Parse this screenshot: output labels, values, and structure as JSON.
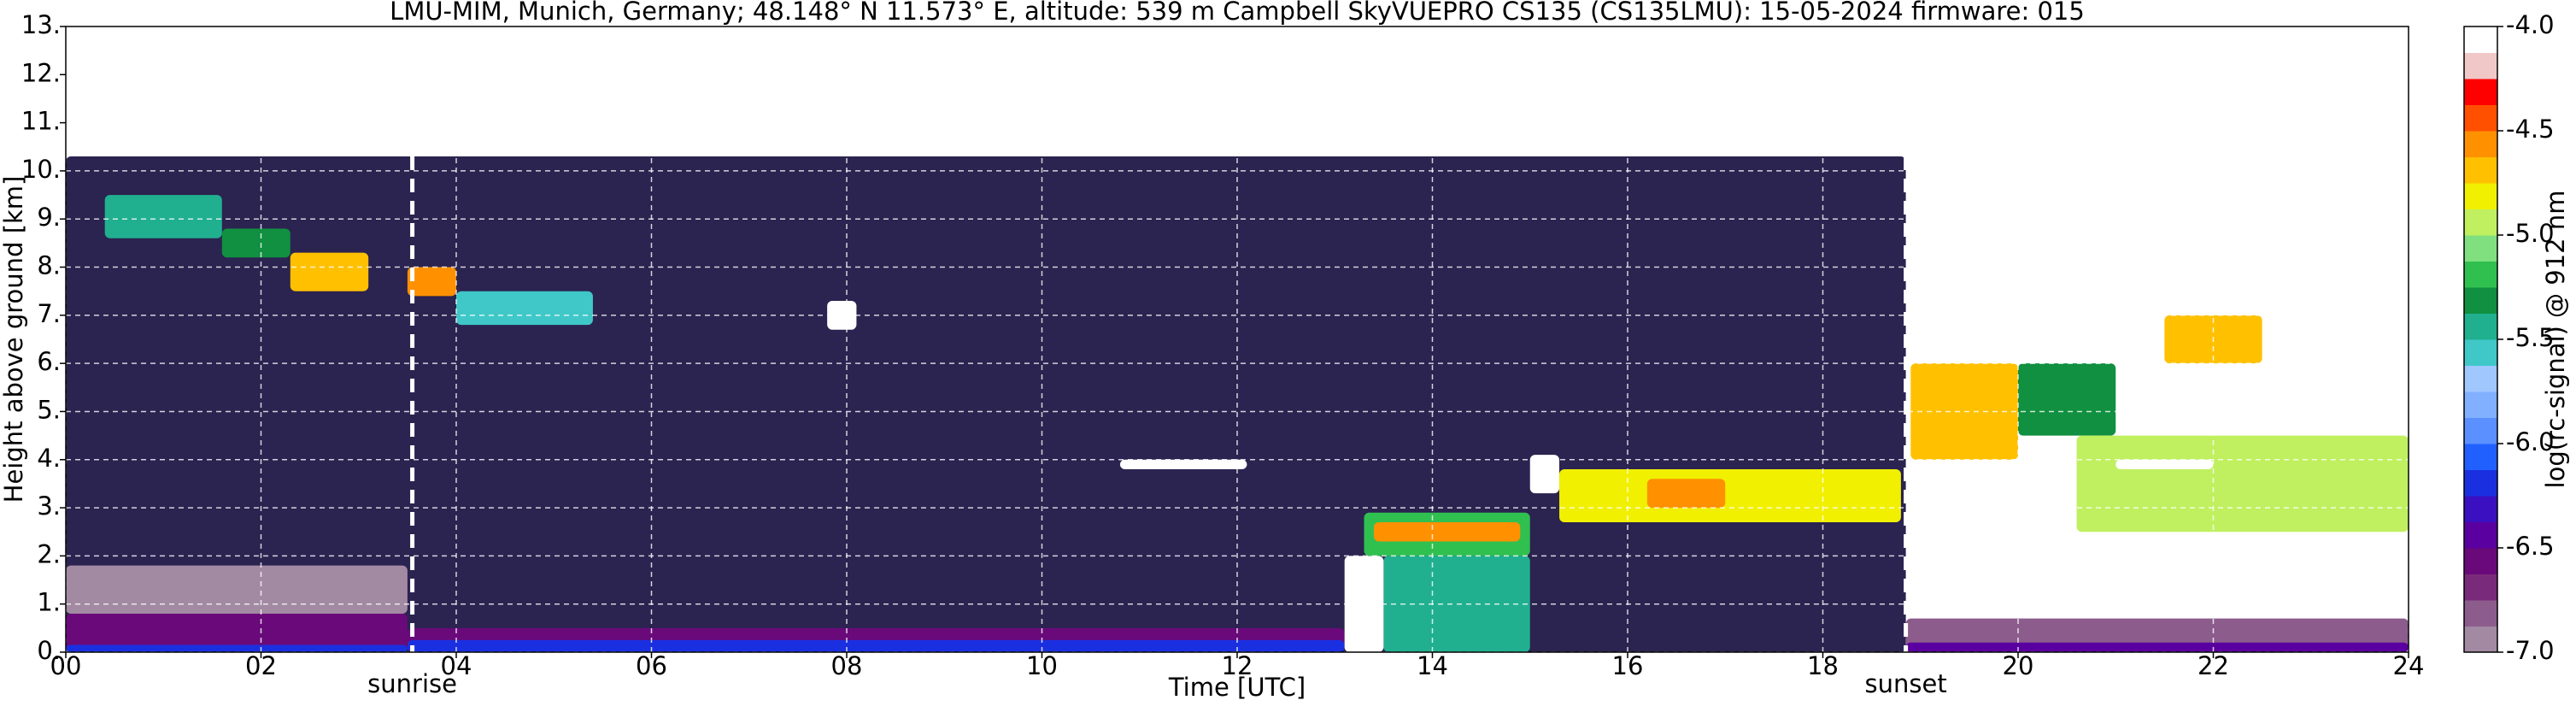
{
  "chart_data": {
    "type": "heatmap",
    "title": "LMU-MIM, Munich, Germany; 48.148° N 11.573° E, altitude: 539 m    Campbell SkyVUEPRO CS135 (CS135LMU): 15-05-2024    firmware: 015",
    "xlabel": "Time [UTC]",
    "ylabel": "Height above ground [km]",
    "xlim": [
      0,
      24
    ],
    "ylim": [
      0,
      13
    ],
    "xticks": [
      {
        "value": 0,
        "label": "00"
      },
      {
        "value": 2,
        "label": "02"
      },
      {
        "value": 4,
        "label": "04"
      },
      {
        "value": 6,
        "label": "06"
      },
      {
        "value": 8,
        "label": "08"
      },
      10,
      12,
      14,
      16,
      18,
      20,
      22,
      24
    ],
    "yticks": [
      {
        "value": 0,
        "label": "0."
      },
      {
        "value": 1,
        "label": "1."
      },
      {
        "value": 2,
        "label": "2."
      },
      {
        "value": 3,
        "label": "3."
      },
      {
        "value": 4,
        "label": "4."
      },
      {
        "value": 5,
        "label": "5."
      },
      {
        "value": 6,
        "label": "6."
      },
      {
        "value": 7,
        "label": "7."
      },
      {
        "value": 8,
        "label": "8."
      },
      {
        "value": 9,
        "label": "9."
      },
      {
        "value": 10,
        "label": "10."
      },
      {
        "value": 11,
        "label": "11."
      },
      {
        "value": 12,
        "label": "12."
      },
      {
        "value": 13,
        "label": "13."
      }
    ],
    "grid": true,
    "grid_color": "#ffffff",
    "colorbar_label": "log(rc-signal) @ 912 nm",
    "clim": [
      -7,
      -4
    ],
    "cticks": [
      {
        "value": -4,
        "label": "-4.0"
      },
      -4.5,
      {
        "value": -5,
        "label": "-5.0"
      },
      -5.5,
      {
        "value": -6,
        "label": "-6.0"
      },
      -6.5,
      {
        "value": -7,
        "label": "-7.0"
      }
    ],
    "colormap": [
      "#a38aa3",
      "#8c5c8c",
      "#7a2a7a",
      "#6a0a7a",
      "#5a00a0",
      "#3a10c0",
      "#1a30e0",
      "#2060ff",
      "#5a90ff",
      "#80b0ff",
      "#a0c8ff",
      "#40c8c8",
      "#20b090",
      "#109040",
      "#30c050",
      "#80e080",
      "#c0f060",
      "#f0f000",
      "#ffc000",
      "#ff9000",
      "#ff5000",
      "#ff0000",
      "#f0c8c8",
      "#ffffff"
    ],
    "under_color": "#000000",
    "noise_color": "#2b2350",
    "layers": [
      {
        "x": [
          0,
          18.85
        ],
        "y": [
          0,
          10.3
        ],
        "value": -7.5,
        "noise": true
      },
      {
        "x": [
          0,
          3.5
        ],
        "y": [
          0.8,
          1.8
        ],
        "value": -6.95
      },
      {
        "x": [
          0,
          3.5
        ],
        "y": [
          0,
          0.8
        ],
        "value": -6.6
      },
      {
        "x": [
          3.5,
          13.1
        ],
        "y": [
          0,
          0.5
        ],
        "value": -6.6
      },
      {
        "x": [
          3.5,
          13.1
        ],
        "y": [
          0,
          0.25
        ],
        "value": -6.15
      },
      {
        "x": [
          0,
          3.5
        ],
        "y": [
          0,
          0.15
        ],
        "value": -6.2
      },
      {
        "x": [
          0.4,
          1.6
        ],
        "y": [
          8.6,
          9.5
        ],
        "value": -5.4
      },
      {
        "x": [
          1.6,
          2.3
        ],
        "y": [
          8.2,
          8.8
        ],
        "value": -5.3
      },
      {
        "x": [
          2.3,
          3.1
        ],
        "y": [
          7.5,
          8.3
        ],
        "value": -4.7
      },
      {
        "x": [
          3.5,
          4.0
        ],
        "y": [
          7.4,
          8.0
        ],
        "value": -4.6
      },
      {
        "x": [
          4.0,
          5.4
        ],
        "y": [
          6.8,
          7.5
        ],
        "value": -5.6
      },
      {
        "x": [
          7.8,
          8.1
        ],
        "y": [
          6.7,
          7.3
        ],
        "value": -4.05
      },
      {
        "x": [
          10.8,
          12.1
        ],
        "y": [
          3.8,
          4.0
        ],
        "value": -4.05
      },
      {
        "x": [
          13.5,
          15.0
        ],
        "y": [
          0,
          2.0
        ],
        "value": -5.45
      },
      {
        "x": [
          13.1,
          13.5
        ],
        "y": [
          0,
          2.0
        ],
        "value": -4.05
      },
      {
        "x": [
          13.3,
          15.0
        ],
        "y": [
          2.0,
          2.9
        ],
        "value": -5.2
      },
      {
        "x": [
          13.4,
          14.9
        ],
        "y": [
          2.3,
          2.7
        ],
        "value": -4.6
      },
      {
        "x": [
          15.0,
          15.3
        ],
        "y": [
          3.3,
          4.1
        ],
        "value": -4.05
      },
      {
        "x": [
          15.3,
          18.8
        ],
        "y": [
          2.7,
          3.8
        ],
        "value": -4.8
      },
      {
        "x": [
          16.2,
          17.0
        ],
        "y": [
          3.0,
          3.6
        ],
        "value": -4.6
      },
      {
        "x": [
          18.85,
          24
        ],
        "y": [
          0,
          0.7
        ],
        "value": -6.8
      },
      {
        "x": [
          18.85,
          24
        ],
        "y": [
          0,
          0.2
        ],
        "value": -6.5
      },
      {
        "x": [
          18.9,
          20.0
        ],
        "y": [
          4.0,
          6.0
        ],
        "value": -4.7
      },
      {
        "x": [
          20.0,
          21.0
        ],
        "y": [
          4.5,
          6.0
        ],
        "value": -5.3
      },
      {
        "x": [
          21.5,
          22.5
        ],
        "y": [
          6.0,
          7.0
        ],
        "value": -4.7
      },
      {
        "x": [
          20.6,
          24
        ],
        "y": [
          2.5,
          4.5
        ],
        "value": -5.0
      },
      {
        "x": [
          21.0,
          22.0
        ],
        "y": [
          3.8,
          4.0
        ],
        "value": -4.05
      }
    ],
    "annotations": [
      {
        "x": 3.55,
        "label": "sunrise"
      },
      {
        "x": 18.85,
        "label": "sunset"
      }
    ]
  }
}
